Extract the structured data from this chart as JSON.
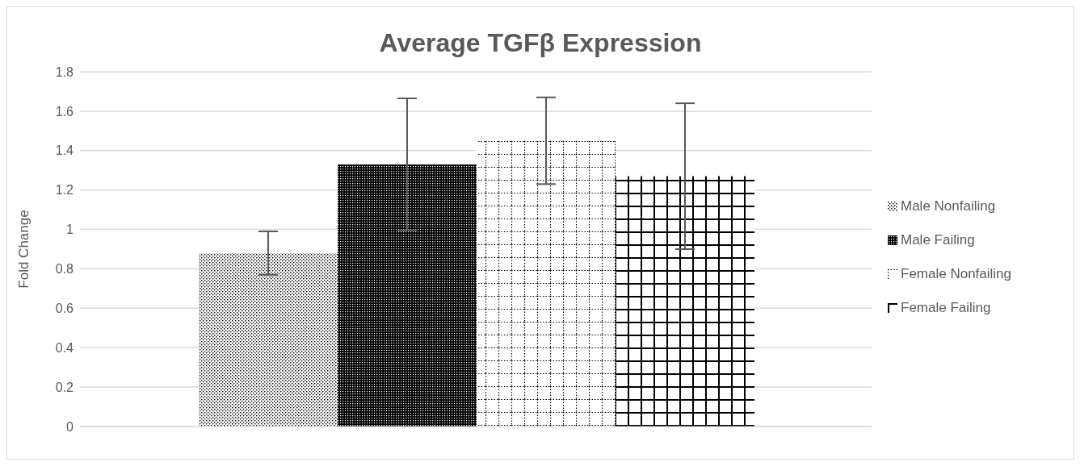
{
  "chart_data": {
    "type": "bar",
    "title": "Average TGFβ Expression",
    "ylabel": "Fold Change",
    "categories": [
      null
    ],
    "series": [
      {
        "name": "Male Nonfailing",
        "color": "#000000",
        "values": [
          0.88
        ],
        "errors": [
          0.11
        ]
      },
      {
        "name": "Male Failing",
        "color": "#000000",
        "values": [
          1.33
        ],
        "errors": [
          0.335
        ]
      },
      {
        "name": "Female Nonfailing",
        "color": "#000000",
        "values": [
          1.45
        ],
        "errors": [
          0.22
        ]
      },
      {
        "name": "Female Failing",
        "color": "#000000",
        "values": [
          1.27
        ],
        "errors": [
          0.37
        ]
      }
    ],
    "ylim": [
      0,
      1.8
    ],
    "yticks": [
      0,
      0.2,
      0.4,
      0.6,
      0.8,
      1,
      1.2,
      1.4,
      1.6,
      1.8
    ],
    "grid": "y",
    "legend": "right"
  }
}
